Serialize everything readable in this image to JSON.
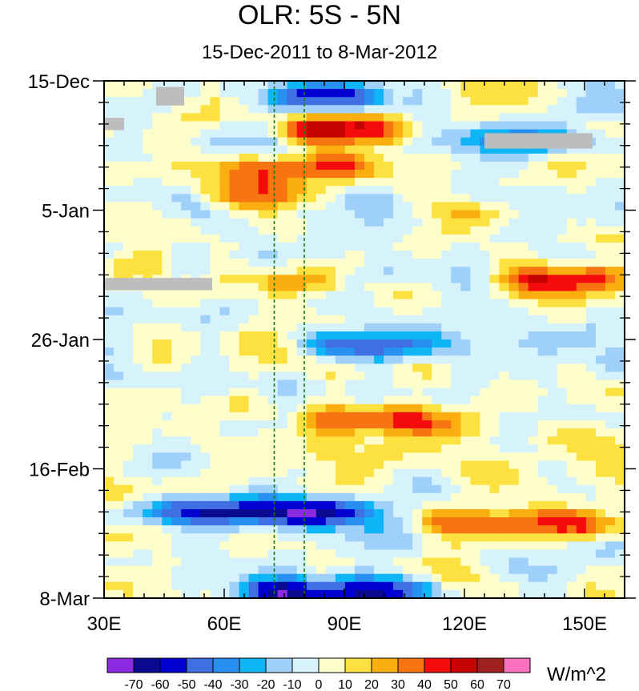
{
  "chart_data": {
    "type": "heatmap",
    "title": "OLR: 5S - 5N",
    "subtitle": "15-Dec-2011 to 8-Mar-2012",
    "xlabel": "",
    "ylabel": "",
    "x_range": [
      30,
      160
    ],
    "x_ticks": [
      {
        "value": 30,
        "label": "30E"
      },
      {
        "value": 60,
        "label": "60E"
      },
      {
        "value": 90,
        "label": "90E"
      },
      {
        "value": 120,
        "label": "120E"
      },
      {
        "value": 150,
        "label": "150E"
      }
    ],
    "y_range_days": [
      0,
      84
    ],
    "y_ticks": [
      {
        "day": 0,
        "label": "15-Dec"
      },
      {
        "day": 21,
        "label": "5-Jan"
      },
      {
        "day": 42,
        "label": "26-Jan"
      },
      {
        "day": 63,
        "label": "16-Feb"
      },
      {
        "day": 84,
        "label": "8-Mar"
      }
    ],
    "reference_lines_lon": [
      72.5,
      80
    ],
    "colorbar": {
      "unit_label": "W/m^2",
      "levels": [
        -70,
        -60,
        -50,
        -40,
        -30,
        -20,
        -10,
        0,
        10,
        20,
        30,
        40,
        50,
        60,
        70
      ],
      "colors": [
        "#8a2be2",
        "#0a0a8f",
        "#0000d2",
        "#3f6fe0",
        "#2790f0",
        "#0fb6f6",
        "#9fd0fa",
        "#d6f2fb",
        "#fefecb",
        "#fce140",
        "#fbae10",
        "#f77510",
        "#f40c0c",
        "#c60202",
        "#a02020",
        "#fa70c0"
      ]
    },
    "anomaly_features": [
      {
        "day": 2.5,
        "lon_from": 70,
        "lon_to": 100,
        "value": -60
      },
      {
        "day": 8,
        "lon_from": 75,
        "lon_to": 105,
        "value": 50
      },
      {
        "day": 14,
        "lon_from": 60,
        "lon_to": 100,
        "value": 40
      },
      {
        "day": 18.5,
        "lon_from": 55,
        "lon_to": 90,
        "value": 35
      },
      {
        "day": 33,
        "lon_from": 70,
        "lon_to": 90,
        "value": 30
      },
      {
        "day": 43,
        "lon_from": 80,
        "lon_to": 120,
        "value": -45
      },
      {
        "day": 55,
        "lon_from": 80,
        "lon_to": 115,
        "value": 40
      },
      {
        "day": 70,
        "lon_from": 40,
        "lon_to": 100,
        "value": -65
      },
      {
        "day": 72,
        "lon_from": 110,
        "lon_to": 160,
        "value": 45
      },
      {
        "day": 83,
        "lon_from": 60,
        "lon_to": 110,
        "value": -60
      },
      {
        "day": 10,
        "lon_from": 110,
        "lon_to": 160,
        "value": -25
      },
      {
        "day": 32,
        "lon_from": 130,
        "lon_to": 160,
        "value": 45
      },
      {
        "day": 30,
        "lon_from": 30,
        "lon_to": 45,
        "value": 20
      }
    ],
    "missing_data": [
      {
        "day_from": 8.5,
        "day_to": 11,
        "lon_from": 125,
        "lon_to": 152
      },
      {
        "day_from": 32,
        "day_to": 34,
        "lon_from": 30,
        "lon_to": 57
      },
      {
        "day_from": 6,
        "day_to": 8,
        "lon_from": 30,
        "lon_to": 35
      },
      {
        "day_from": 1,
        "day_to": 4,
        "lon_from": 43,
        "lon_to": 50
      }
    ]
  }
}
